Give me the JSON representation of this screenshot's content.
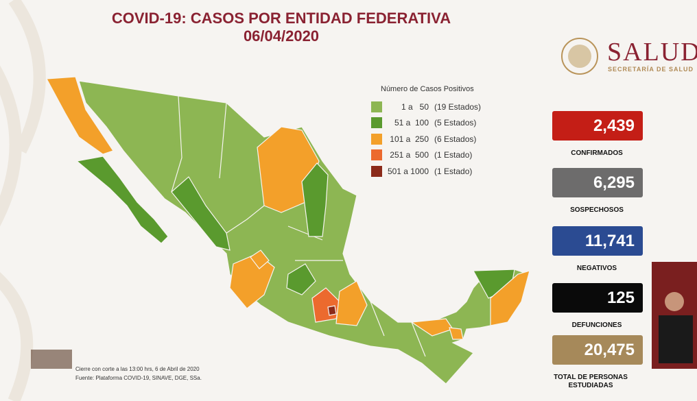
{
  "header": {
    "title": "COVID-19: CASOS POR ENTIDAD FEDERATIVA",
    "date": "06/04/2020"
  },
  "logo": {
    "name": "SALUD",
    "subtitle": "SECRETARÍA DE SALUD"
  },
  "legend": {
    "title": "Número de Casos Positivos",
    "items": [
      {
        "range": "1 a   50",
        "count": "(19 Estados)",
        "color": "#8db653"
      },
      {
        "range": "51 a  100",
        "count": "(5 Estados)",
        "color": "#5a9a2e"
      },
      {
        "range": "101 a  250",
        "count": "(6 Estados)",
        "color": "#f3a02a"
      },
      {
        "range": "251 a  500",
        "count": "(1 Estado)",
        "color": "#ec6a2e"
      },
      {
        "range": "501 a 1000",
        "count": "(1 Estado)",
        "color": "#8b2a1a"
      }
    ]
  },
  "stats": [
    {
      "value": "2,439",
      "label": "CONFIRMADOS",
      "color": "#c41e16"
    },
    {
      "value": "6,295",
      "label": "SOSPECHOSOS",
      "color": "#6d6c6c"
    },
    {
      "value": "11,741",
      "label": "NEGATIVOS",
      "color": "#2b4b92"
    },
    {
      "value": "125",
      "label": "DEFUNCIONES",
      "color": "#0a0a0a"
    },
    {
      "value": "20,475",
      "label": "TOTAL DE PERSONAS ESTUDIADAS",
      "color": "#a6895a"
    }
  ],
  "footer": {
    "line1": "Cierre con corte a las 13:00 hrs, 6 de Abril de 2020",
    "line2": "Fuente: Plataforma COVID-19, SINAVE, DGE, SSa."
  }
}
